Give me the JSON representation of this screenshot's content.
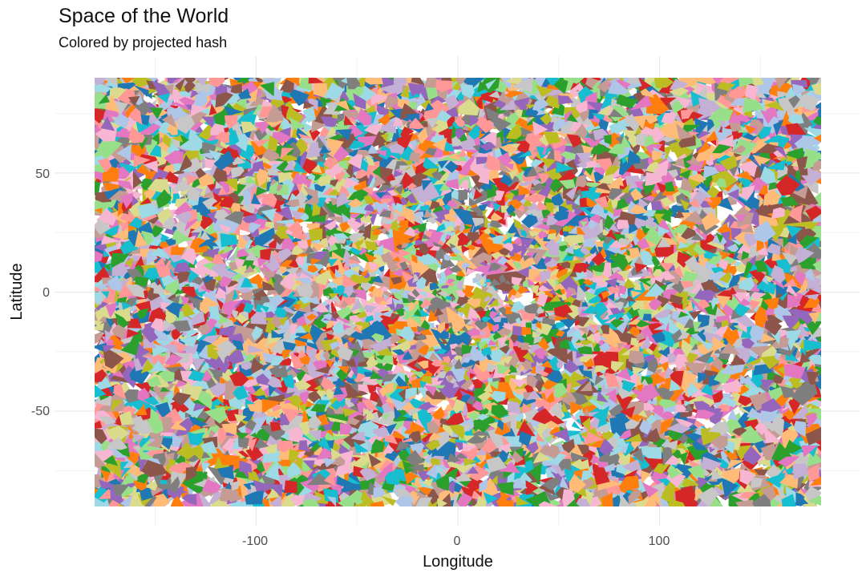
{
  "chart_data": {
    "type": "heatmap",
    "title": "Space of the World",
    "subtitle": "Colored by projected hash",
    "xlabel": "Longitude",
    "ylabel": "Latitude",
    "xlim": [
      -180,
      180
    ],
    "ylim": [
      -90,
      90
    ],
    "x_ticks": [
      -100,
      0,
      100
    ],
    "y_ticks": [
      -50,
      0,
      50
    ],
    "x_tick_labels": [
      "-100",
      "0",
      "100"
    ],
    "y_tick_labels": [
      "-50",
      "0",
      "50"
    ],
    "grid": true,
    "legend": "none",
    "palette": [
      "#1f77b4",
      "#ff7f0e",
      "#2ca02c",
      "#d62728",
      "#9467bd",
      "#8c564b",
      "#e377c2",
      "#7f7f7f",
      "#bcbd22",
      "#17becf",
      "#aec7e8",
      "#ffbb78",
      "#98df8a",
      "#ff9896",
      "#c5b0d5",
      "#c49c94",
      "#f7b6d2",
      "#c7c7c7",
      "#dbdb8d",
      "#9edae5"
    ]
  }
}
